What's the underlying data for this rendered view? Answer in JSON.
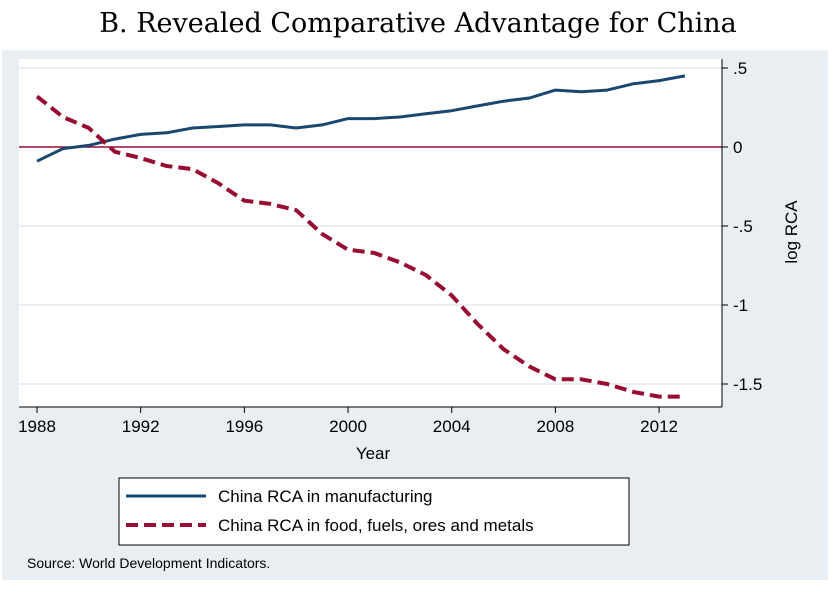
{
  "chart_data": {
    "type": "line",
    "title": "B. Revealed Comparative Advantage for China",
    "xlabel": "Year",
    "ylabel": "log RCA",
    "y_axis_position": "right",
    "xlim": [
      1988,
      2014.5
    ],
    "ylim": [
      -1.65,
      0.55
    ],
    "x_ticks": [
      1988,
      1992,
      1996,
      2000,
      2004,
      2008,
      2012
    ],
    "x_tick_labels": [
      "1988",
      "1992",
      "1996",
      "2000",
      "2004",
      "2008",
      "2012"
    ],
    "y_ticks": [
      0.5,
      0,
      -0.5,
      -1,
      -1.5
    ],
    "y_tick_labels": [
      ".5",
      "0",
      "-.5",
      "-1",
      "-1.5"
    ],
    "reference_line_y": 0,
    "grid": true,
    "legend_position": "bottom",
    "note": "Source: World Development Indicators.",
    "colors": {
      "manufacturing": "#1a476f",
      "food_fuels": "#990c32",
      "reference": "#990c32",
      "background": "#e9eef2",
      "plot_background": "#ffffff",
      "grid": "#e9eef2"
    },
    "series": [
      {
        "name": "China RCA in manufacturing",
        "style": "solid",
        "x": [
          1988,
          1989,
          1990,
          1991,
          1992,
          1993,
          1994,
          1995,
          1996,
          1997,
          1998,
          1999,
          2000,
          2001,
          2002,
          2003,
          2004,
          2005,
          2006,
          2007,
          2008,
          2009,
          2010,
          2011,
          2012,
          2013
        ],
        "values": [
          -0.09,
          -0.01,
          0.01,
          0.05,
          0.08,
          0.09,
          0.12,
          0.13,
          0.14,
          0.14,
          0.12,
          0.14,
          0.18,
          0.18,
          0.19,
          0.21,
          0.23,
          0.26,
          0.29,
          0.31,
          0.36,
          0.35,
          0.36,
          0.4,
          0.42,
          0.45
        ]
      },
      {
        "name": "China RCA in food, fuels, ores and metals",
        "style": "dashed",
        "x": [
          1988,
          1989,
          1990,
          1991,
          1992,
          1993,
          1994,
          1995,
          1996,
          1997,
          1998,
          1999,
          2000,
          2001,
          2002,
          2003,
          2004,
          2005,
          2006,
          2007,
          2008,
          2009,
          2010,
          2011,
          2012,
          2013
        ],
        "values": [
          0.32,
          0.19,
          0.12,
          -0.03,
          -0.07,
          -0.12,
          -0.14,
          -0.23,
          -0.34,
          -0.36,
          -0.4,
          -0.55,
          -0.65,
          -0.67,
          -0.73,
          -0.81,
          -0.94,
          -1.12,
          -1.28,
          -1.39,
          -1.47,
          -1.47,
          -1.5,
          -1.55,
          -1.58,
          -1.58
        ]
      }
    ]
  }
}
